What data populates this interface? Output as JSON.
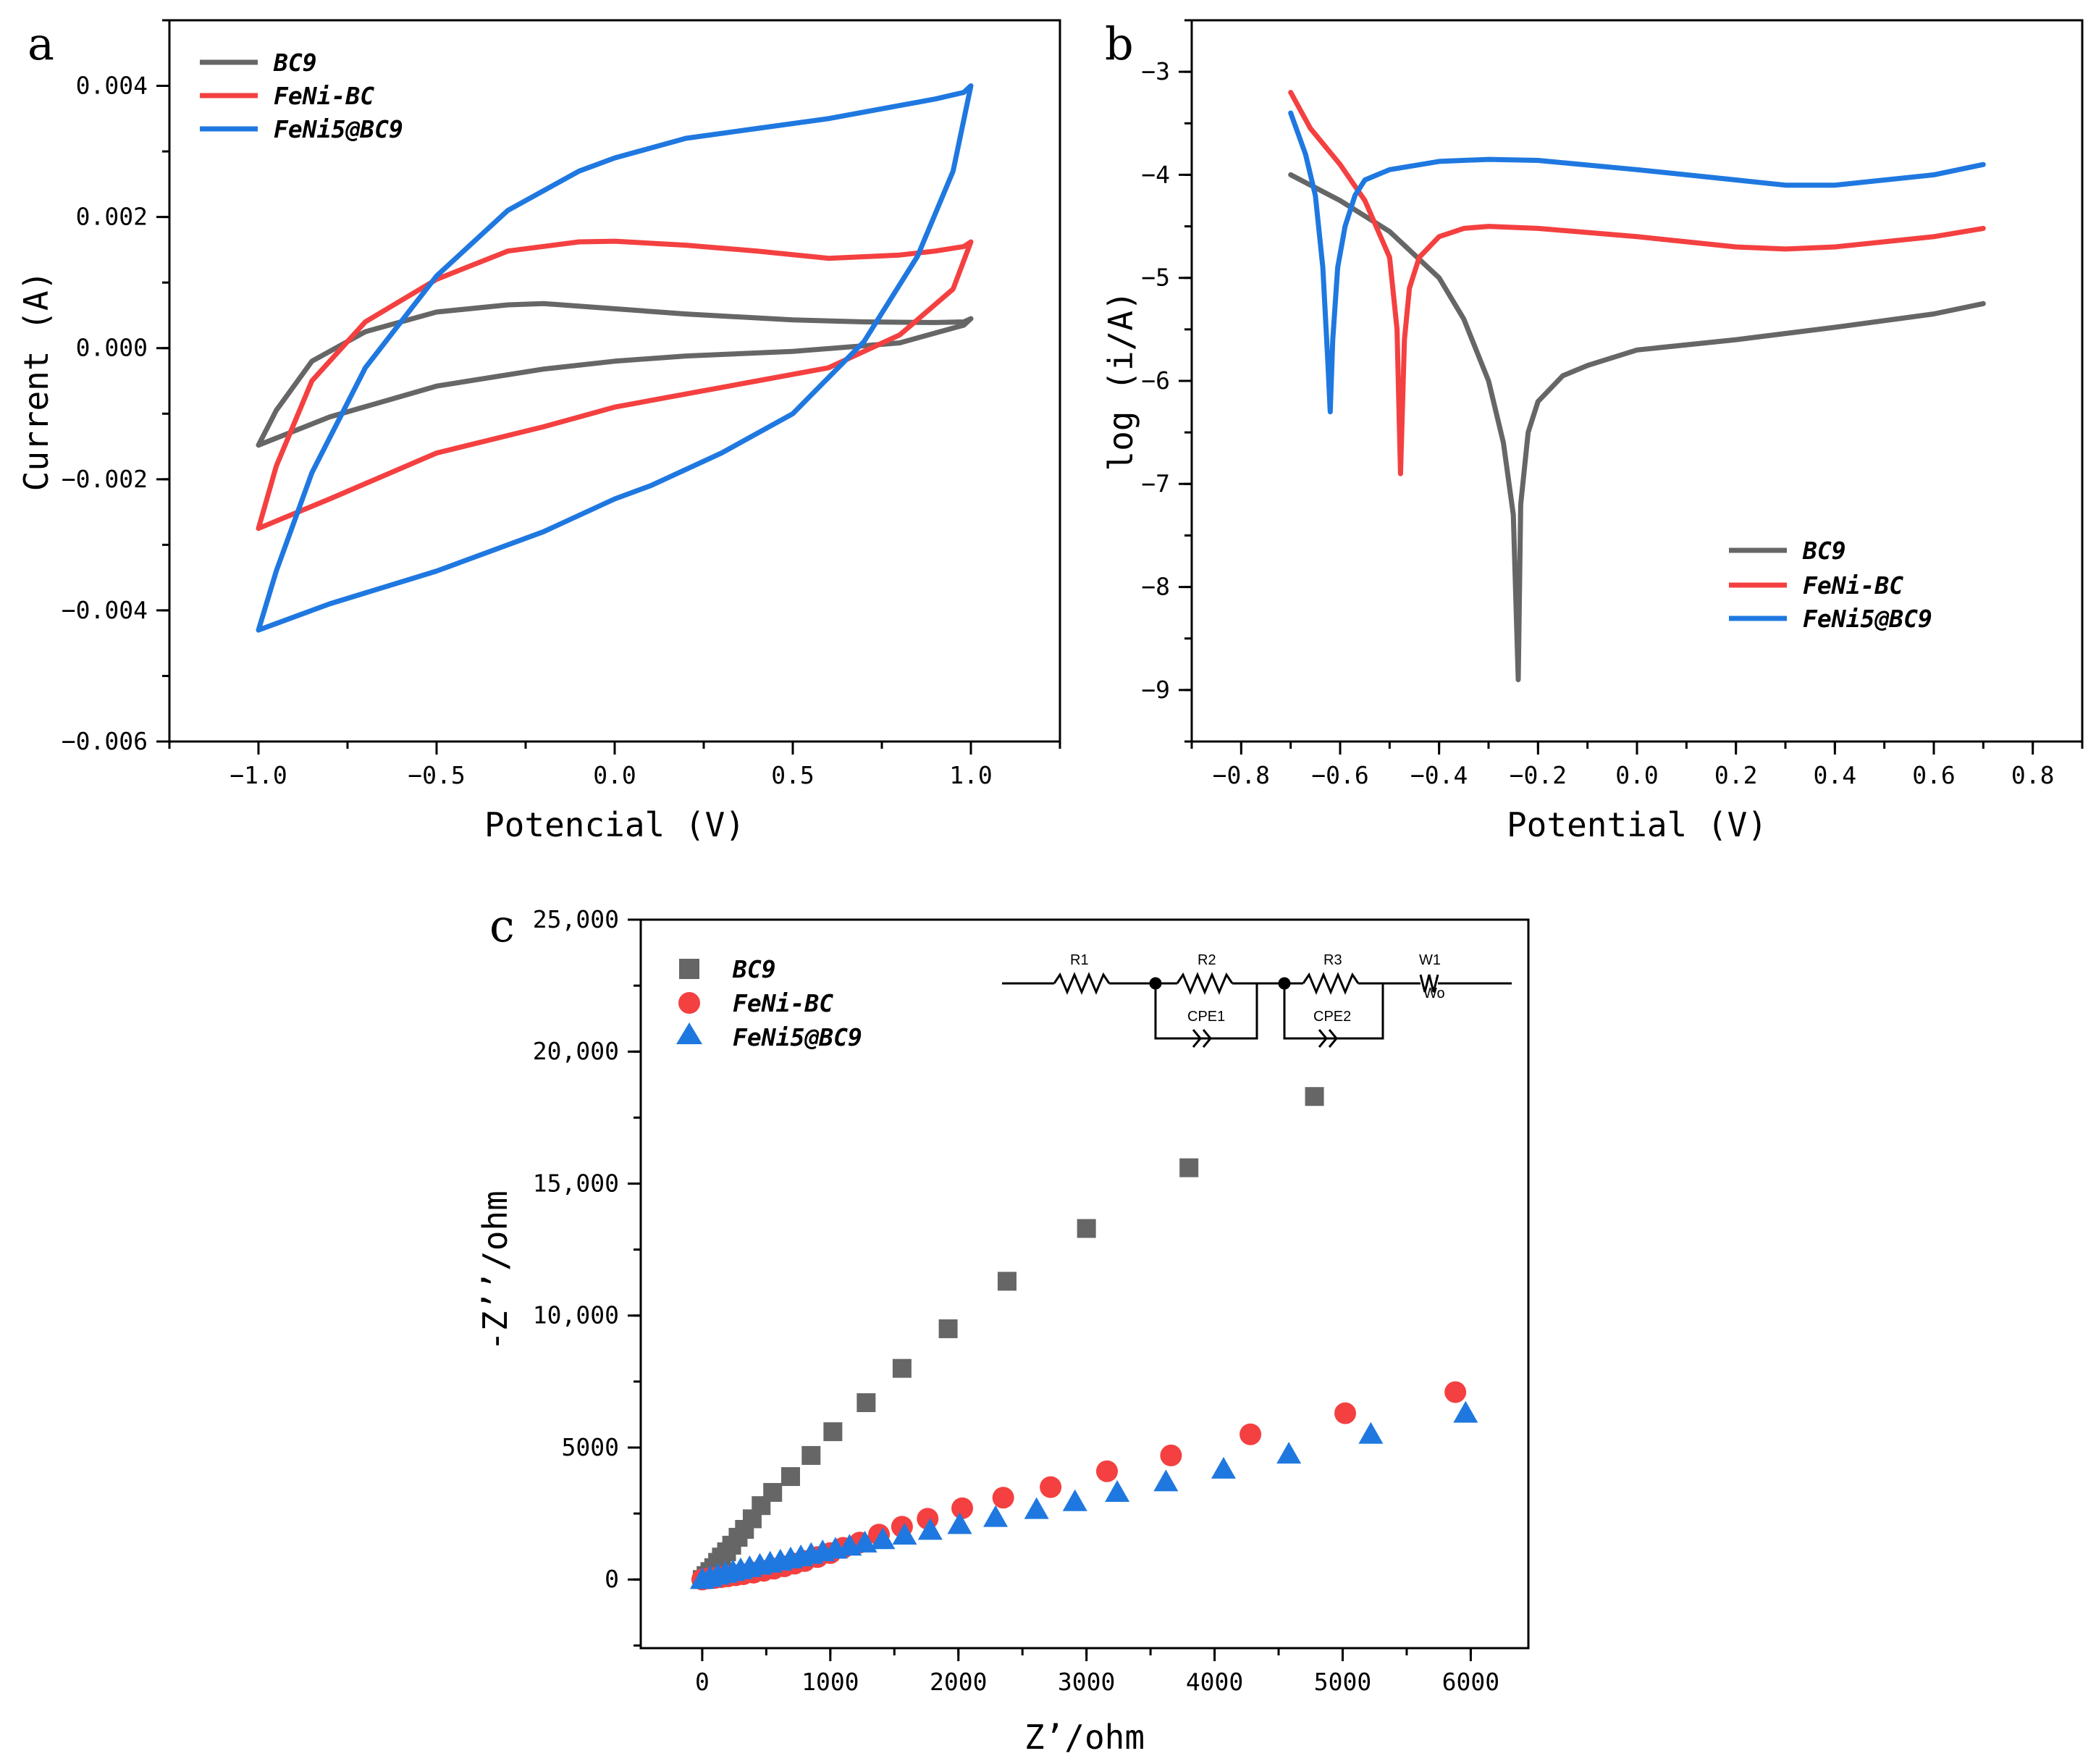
{
  "colors": {
    "BC9": "#666666",
    "FeNi-BC": "#f44040",
    "FeNi5@BC9": "#1f78e0"
  },
  "chart_data": [
    {
      "panel": "a",
      "type": "line",
      "title": "",
      "xlabel": "Potencial (V)",
      "ylabel": "Current (A)",
      "xlim": [
        -1.25,
        1.25
      ],
      "ylim": [
        -0.006,
        0.005
      ],
      "xticks": [
        -1.0,
        -0.5,
        0.0,
        0.5,
        1.0
      ],
      "xtick_labels": [
        "-1.0",
        "-0.5",
        "0.0",
        "0.5",
        "1.0"
      ],
      "yticks": [
        -0.006,
        -0.004,
        -0.002,
        0.0,
        0.002,
        0.004
      ],
      "ytick_labels": [
        "-0.006",
        "-0.004",
        "-0.002",
        "0.000",
        "0.002",
        "0.004"
      ],
      "legend": [
        "BC9",
        "FeNi-BC",
        "FeNi5@BC9"
      ],
      "legend_position": "top-left",
      "series": [
        {
          "name": "BC9",
          "x": [
            -1.0,
            -0.95,
            -0.85,
            -0.7,
            -0.5,
            -0.3,
            -0.2,
            0.0,
            0.2,
            0.5,
            0.7,
            0.9,
            0.98,
            1.0,
            0.98,
            0.8,
            0.5,
            0.2,
            0.0,
            -0.2,
            -0.5,
            -0.8,
            -1.0
          ],
          "y": [
            -0.00148,
            -0.00095,
            -0.0002,
            0.00025,
            0.00055,
            0.00066,
            0.00068,
            0.0006,
            0.00052,
            0.00043,
            0.0004,
            0.00039,
            0.0004,
            0.00045,
            0.00035,
            8e-05,
            -5e-05,
            -0.00012,
            -0.0002,
            -0.00032,
            -0.00058,
            -0.00105,
            -0.00148
          ]
        },
        {
          "name": "FeNi-BC",
          "x": [
            -1.0,
            -0.95,
            -0.85,
            -0.7,
            -0.5,
            -0.3,
            -0.1,
            0.0,
            0.2,
            0.4,
            0.6,
            0.8,
            0.9,
            0.98,
            1.0,
            0.95,
            0.8,
            0.6,
            0.4,
            0.2,
            0.0,
            -0.2,
            -0.5,
            -0.8,
            -1.0
          ],
          "y": [
            -0.00275,
            -0.0018,
            -0.0005,
            0.0004,
            0.00105,
            0.00148,
            0.00162,
            0.00163,
            0.00157,
            0.00148,
            0.00137,
            0.00142,
            0.00148,
            0.00155,
            0.00162,
            0.0009,
            0.0002,
            -0.0003,
            -0.0005,
            -0.0007,
            -0.0009,
            -0.0012,
            -0.0016,
            -0.0023,
            -0.00275
          ]
        },
        {
          "name": "FeNi5@BC9",
          "x": [
            -1.0,
            -0.95,
            -0.85,
            -0.7,
            -0.5,
            -0.3,
            -0.1,
            0.0,
            0.2,
            0.4,
            0.6,
            0.8,
            0.9,
            0.98,
            1.0,
            0.95,
            0.85,
            0.7,
            0.5,
            0.3,
            0.1,
            0.0,
            -0.2,
            -0.5,
            -0.8,
            -1.0
          ],
          "y": [
            -0.0043,
            -0.0034,
            -0.0019,
            -0.0003,
            0.0011,
            0.0021,
            0.0027,
            0.0029,
            0.0032,
            0.00335,
            0.0035,
            0.0037,
            0.0038,
            0.0039,
            0.004,
            0.0027,
            0.0014,
            0.0001,
            -0.001,
            -0.0016,
            -0.0021,
            -0.0023,
            -0.0028,
            -0.0034,
            -0.0039,
            -0.0043
          ]
        }
      ]
    },
    {
      "panel": "b",
      "type": "line",
      "title": "",
      "xlabel": "Potential (V)",
      "ylabel": "log (i/A)",
      "xlim": [
        -0.9,
        0.9
      ],
      "ylim": [
        -9.5,
        -2.5
      ],
      "xticks": [
        -0.8,
        -0.6,
        -0.4,
        -0.2,
        0.0,
        0.2,
        0.4,
        0.6,
        0.8
      ],
      "xtick_labels": [
        "-0.8",
        "-0.6",
        "-0.4",
        "-0.2",
        "0.0",
        "0.2",
        "0.4",
        "0.6",
        "0.8"
      ],
      "yticks": [
        -9,
        -8,
        -7,
        -6,
        -5,
        -4,
        -3
      ],
      "ytick_labels": [
        "-9",
        "-8",
        "-7",
        "-6",
        "-5",
        "-4",
        "-3"
      ],
      "legend": [
        "BC9",
        "FeNi-BC",
        "FeNi5@BC9"
      ],
      "legend_position": "bottom-right",
      "series": [
        {
          "name": "BC9",
          "x": [
            -0.7,
            -0.6,
            -0.5,
            -0.4,
            -0.35,
            -0.3,
            -0.27,
            -0.25,
            -0.24,
            -0.235,
            -0.22,
            -0.2,
            -0.15,
            -0.1,
            0.0,
            0.2,
            0.4,
            0.6,
            0.7
          ],
          "y": [
            -4.0,
            -4.25,
            -4.55,
            -5.0,
            -5.4,
            -6.0,
            -6.6,
            -7.3,
            -8.9,
            -7.2,
            -6.5,
            -6.2,
            -5.95,
            -5.85,
            -5.7,
            -5.6,
            -5.48,
            -5.35,
            -5.25
          ]
        },
        {
          "name": "FeNi-BC",
          "x": [
            -0.7,
            -0.66,
            -0.6,
            -0.55,
            -0.5,
            -0.485,
            -0.478,
            -0.47,
            -0.46,
            -0.44,
            -0.4,
            -0.35,
            -0.3,
            -0.2,
            0.0,
            0.2,
            0.3,
            0.4,
            0.6,
            0.7
          ],
          "y": [
            -3.2,
            -3.55,
            -3.9,
            -4.25,
            -4.8,
            -5.5,
            -6.9,
            -5.6,
            -5.1,
            -4.8,
            -4.6,
            -4.52,
            -4.5,
            -4.52,
            -4.6,
            -4.7,
            -4.72,
            -4.7,
            -4.6,
            -4.52
          ]
        },
        {
          "name": "FeNi5@BC9",
          "x": [
            -0.7,
            -0.67,
            -0.65,
            -0.635,
            -0.625,
            -0.62,
            -0.615,
            -0.605,
            -0.59,
            -0.57,
            -0.55,
            -0.5,
            -0.4,
            -0.3,
            -0.2,
            0.0,
            0.2,
            0.3,
            0.4,
            0.6,
            0.7
          ],
          "y": [
            -3.4,
            -3.8,
            -4.2,
            -4.9,
            -5.8,
            -6.3,
            -5.6,
            -4.9,
            -4.5,
            -4.2,
            -4.05,
            -3.95,
            -3.87,
            -3.85,
            -3.86,
            -3.95,
            -4.05,
            -4.1,
            -4.1,
            -4.0,
            -3.9
          ]
        }
      ]
    },
    {
      "panel": "c",
      "type": "scatter",
      "title": "",
      "xlabel": "Z’/ohm",
      "ylabel": "-Z’’/ohm",
      "xlim": [
        -480,
        6450
      ],
      "ylim": [
        -2600,
        25000
      ],
      "xticks": [
        0,
        1000,
        2000,
        3000,
        4000,
        5000,
        6000
      ],
      "xtick_labels": [
        "0",
        "1000",
        "2000",
        "3000",
        "4000",
        "5000",
        "6000"
      ],
      "yticks": [
        0,
        5000,
        10000,
        15000,
        20000,
        25000
      ],
      "ytick_labels": [
        "0",
        "5000",
        "10,000",
        "15,000",
        "20,000",
        "25,000"
      ],
      "legend": [
        "BC9",
        "FeNi-BC",
        "FeNi5@BC9"
      ],
      "legend_position": "top-left",
      "circuit": {
        "labels": [
          "R1",
          "R2",
          "CPE1",
          "R3",
          "CPE2",
          "W1",
          "Wo"
        ]
      },
      "series": [
        {
          "name": "BC9",
          "marker": "square",
          "x": [
            0,
            30,
            60,
            90,
            120,
            150,
            190,
            230,
            280,
            330,
            390,
            460,
            550,
            690,
            850,
            1020,
            1280,
            1560,
            1920,
            2380,
            3000,
            3800,
            4780
          ],
          "y": [
            0,
            150,
            300,
            450,
            650,
            850,
            1050,
            1300,
            1600,
            1900,
            2300,
            2800,
            3300,
            3900,
            4700,
            5600,
            6700,
            8000,
            9500,
            11300,
            13300,
            15600,
            18300
          ]
        },
        {
          "name": "FeNi-BC",
          "marker": "circle",
          "x": [
            0,
            50,
            100,
            150,
            200,
            260,
            320,
            400,
            480,
            560,
            640,
            720,
            800,
            900,
            1000,
            1100,
            1230,
            1380,
            1560,
            1760,
            2030,
            2350,
            2720,
            3160,
            3660,
            4280,
            5020,
            5880
          ],
          "y": [
            0,
            40,
            60,
            90,
            120,
            160,
            200,
            260,
            330,
            410,
            500,
            600,
            700,
            850,
            1000,
            1200,
            1400,
            1700,
            2000,
            2300,
            2700,
            3100,
            3500,
            4100,
            4700,
            5500,
            6300,
            7100
          ]
        },
        {
          "name": "FeNi5@BC9",
          "marker": "triangle",
          "x": [
            0,
            60,
            120,
            180,
            240,
            300,
            370,
            450,
            530,
            610,
            690,
            770,
            850,
            940,
            1040,
            1150,
            1270,
            1410,
            1580,
            1780,
            2010,
            2290,
            2610,
            2910,
            3240,
            3620,
            4070,
            4580,
            5220,
            5960
          ],
          "y": [
            0,
            80,
            160,
            230,
            300,
            370,
            450,
            540,
            620,
            700,
            780,
            860,
            950,
            1050,
            1150,
            1260,
            1380,
            1510,
            1680,
            1860,
            2080,
            2350,
            2650,
            2950,
            3300,
            3700,
            4180,
            4750,
            5500,
            6300
          ]
        }
      ]
    }
  ]
}
